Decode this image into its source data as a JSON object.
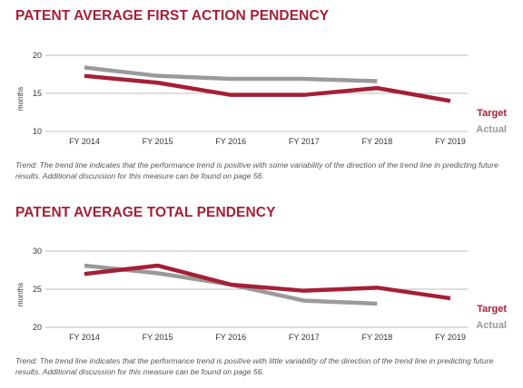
{
  "colors": {
    "title": "#a51f36",
    "target": "#a51f36",
    "actual": "#9a9a9a",
    "grid": "#bdbdbd",
    "text": "#333333",
    "note": "#555555"
  },
  "chart_data": [
    {
      "type": "line",
      "title": "PATENT AVERAGE FIRST ACTION PENDENCY",
      "ylabel": "months",
      "xlabel": "",
      "categories": [
        "FY 2014",
        "FY 2015",
        "FY 2016",
        "FY 2017",
        "FY 2018",
        "FY 2019"
      ],
      "yticks": [
        10,
        15,
        20
      ],
      "ylim": [
        10,
        20
      ],
      "grid": true,
      "legend_position": "bottom-right",
      "series": [
        {
          "name": "Target",
          "color": "#a51f36",
          "values": [
            17.3,
            16.4,
            14.8,
            14.8,
            15.7,
            14.0
          ]
        },
        {
          "name": "Actual",
          "color": "#9a9a9a",
          "values": [
            18.4,
            17.3,
            16.9,
            16.9,
            16.6,
            null
          ]
        }
      ],
      "note": "Trend: The trend line indicates that the performance trend is positive with some variability of the direction of the trend line in predicting future results. Additional discussion for this measure can be found on page 56."
    },
    {
      "type": "line",
      "title": "PATENT AVERAGE TOTAL PENDENCY",
      "ylabel": "months",
      "xlabel": "",
      "categories": [
        "FY 2014",
        "FY 2015",
        "FY 2016",
        "FY 2017",
        "FY 2018",
        "FY 2019"
      ],
      "yticks": [
        20,
        25,
        30
      ],
      "ylim": [
        20,
        30
      ],
      "grid": true,
      "legend_position": "bottom-right",
      "series": [
        {
          "name": "Target",
          "color": "#a51f36",
          "values": [
            27.0,
            28.1,
            25.6,
            24.8,
            25.2,
            23.8
          ]
        },
        {
          "name": "Actual",
          "color": "#9a9a9a",
          "values": [
            28.1,
            27.1,
            25.6,
            23.5,
            23.1,
            null
          ]
        }
      ],
      "note": "Trend: The trend line indicates that the performance trend is positive with little variability of the direction of the trend line in predicting future results. Additional discussion for this measure can be found on page 56."
    }
  ]
}
